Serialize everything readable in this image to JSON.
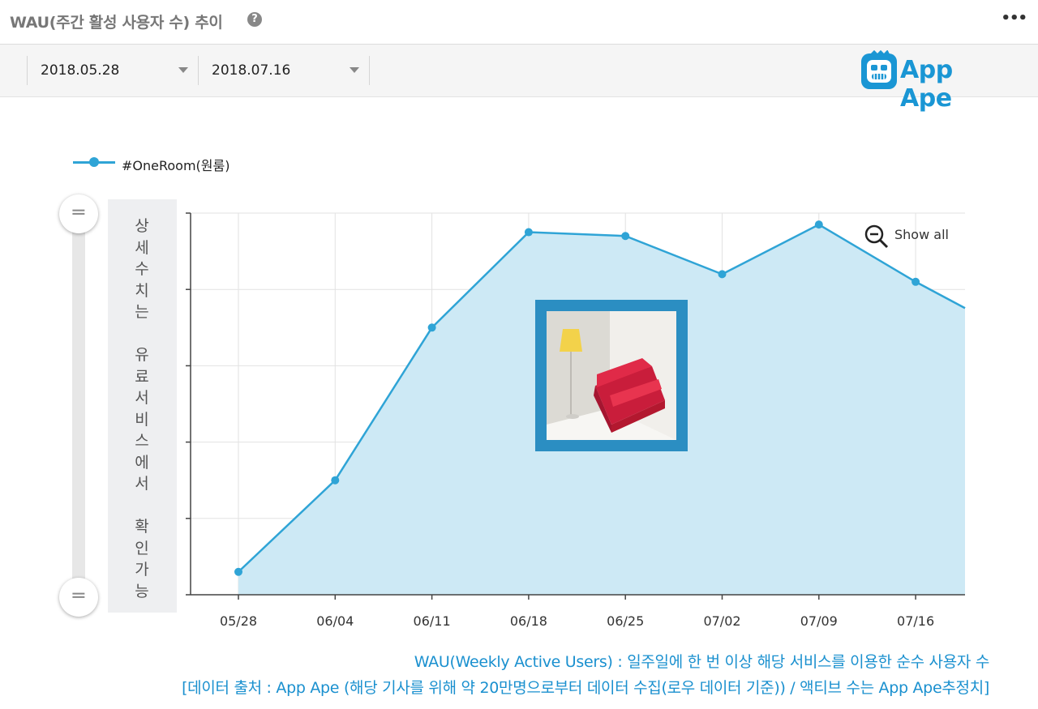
{
  "header": {
    "title": "WAU(주간 활성 사용자 수) 추이",
    "help_icon": "?",
    "more_icon": "•••"
  },
  "toolbar": {
    "start_date": "2018.05.28",
    "end_date": "2018.07.16"
  },
  "logo": {
    "text": "App Ape",
    "color": "#1a96d4"
  },
  "side_note": "상세수치는 유료서비스에서 확인가능",
  "show_all_label": "Show all",
  "caption": {
    "line1": "WAU(Weekly Active Users) : 일주일에 한 번 이상 해당 서비스를 이용한 순수 사용자 수",
    "line2": "[데이터 출처 : App Ape (해당 기사를 위해 약 20만명으로부터 데이터 수집(로우 데이터 기준)) / 액티브 수는 App Ape추정치]"
  },
  "chart_data": {
    "type": "area",
    "categories": [
      "05/28",
      "06/04",
      "06/11",
      "06/18",
      "06/25",
      "07/02",
      "07/09",
      "07/16"
    ],
    "series": [
      {
        "name": "#OneRoom(원룸)",
        "values": [
          0.6,
          3.0,
          7.0,
          9.5,
          9.4,
          8.4,
          9.7,
          8.2
        ],
        "color": "#2fa4d6",
        "fill": "#cde9f5"
      }
    ],
    "ylim": [
      0,
      10
    ],
    "y_tick_labels_shown": false,
    "grid": true,
    "legend": "top-left"
  }
}
